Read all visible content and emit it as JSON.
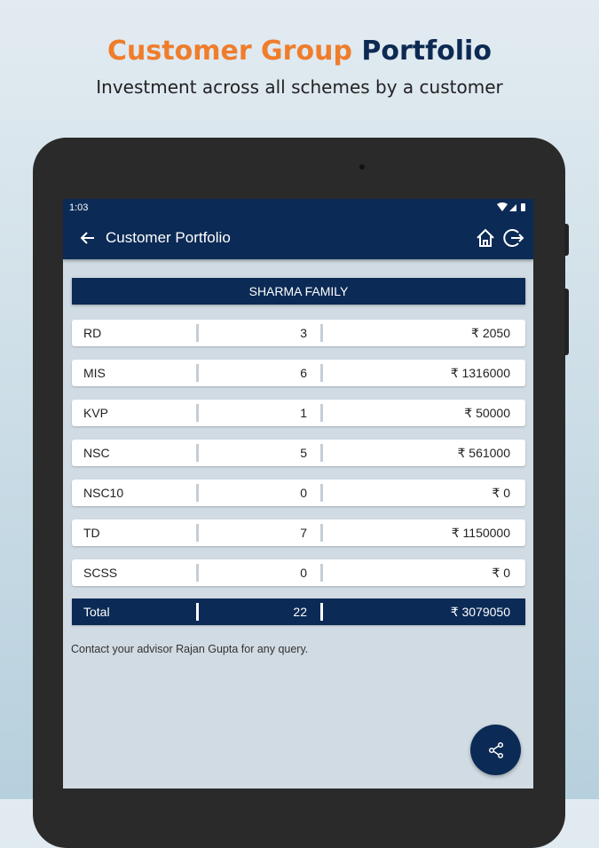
{
  "promo": {
    "title_accent": "Customer Group",
    "title_main": "Portfolio",
    "subtitle": "Investment across all schemes by a customer"
  },
  "status_bar": {
    "time": "1:03"
  },
  "app_bar": {
    "title": "Customer Portfolio"
  },
  "group_name": "SHARMA FAMILY",
  "rows": [
    {
      "scheme": "RD",
      "count": "3",
      "amount": "₹ 2050"
    },
    {
      "scheme": "MIS",
      "count": "6",
      "amount": "₹ 1316000"
    },
    {
      "scheme": "KVP",
      "count": "1",
      "amount": "₹ 50000"
    },
    {
      "scheme": "NSC",
      "count": "5",
      "amount": "₹ 561000"
    },
    {
      "scheme": "NSC10",
      "count": "0",
      "amount": "₹ 0"
    },
    {
      "scheme": "TD",
      "count": "7",
      "amount": "₹ 1150000"
    },
    {
      "scheme": "SCSS",
      "count": "0",
      "amount": "₹ 0"
    }
  ],
  "total": {
    "label": "Total",
    "count": "22",
    "amount": "₹ 3079050"
  },
  "note": "Contact your advisor Rajan Gupta for any query.",
  "colors": {
    "primary": "#0b2a55",
    "accent": "#ef7d2c",
    "background": "#d1dbe3"
  }
}
